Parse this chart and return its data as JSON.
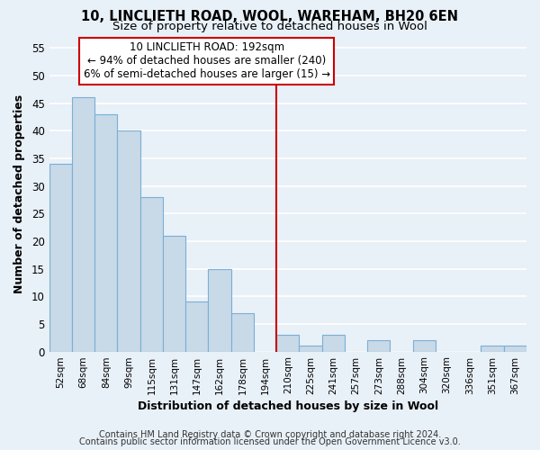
{
  "title1": "10, LINCLIETH ROAD, WOOL, WAREHAM, BH20 6EN",
  "title2": "Size of property relative to detached houses in Wool",
  "xlabel": "Distribution of detached houses by size in Wool",
  "ylabel": "Number of detached properties",
  "bar_labels": [
    "52sqm",
    "68sqm",
    "84sqm",
    "99sqm",
    "115sqm",
    "131sqm",
    "147sqm",
    "162sqm",
    "178sqm",
    "194sqm",
    "210sqm",
    "225sqm",
    "241sqm",
    "257sqm",
    "273sqm",
    "288sqm",
    "304sqm",
    "320sqm",
    "336sqm",
    "351sqm",
    "367sqm"
  ],
  "bar_values": [
    34,
    46,
    43,
    40,
    28,
    21,
    9,
    15,
    7,
    0,
    3,
    1,
    3,
    0,
    2,
    0,
    2,
    0,
    0,
    1,
    1
  ],
  "bar_color": "#c8d9e8",
  "bar_edge_color": "#7bafd4",
  "bg_color": "#e8f0f8",
  "grid_color": "#ffffff",
  "vline_x": 9.5,
  "vline_color": "#cc0000",
  "annotation_text": "10 LINCLIETH ROAD: 192sqm\n← 94% of detached houses are smaller (240)\n6% of semi-detached houses are larger (15) →",
  "annotation_box_color": "#cc0000",
  "ylim": [
    0,
    57
  ],
  "yticks": [
    0,
    5,
    10,
    15,
    20,
    25,
    30,
    35,
    40,
    45,
    50,
    55
  ],
  "footer1": "Contains HM Land Registry data © Crown copyright and database right 2024.",
  "footer2": "Contains public sector information licensed under the Open Government Licence v3.0.",
  "title1_fontsize": 10.5,
  "title2_fontsize": 9.5,
  "axis_label_fontsize": 9,
  "tick_fontsize": 7.5,
  "annotation_fontsize": 8.5,
  "footer_fontsize": 7
}
